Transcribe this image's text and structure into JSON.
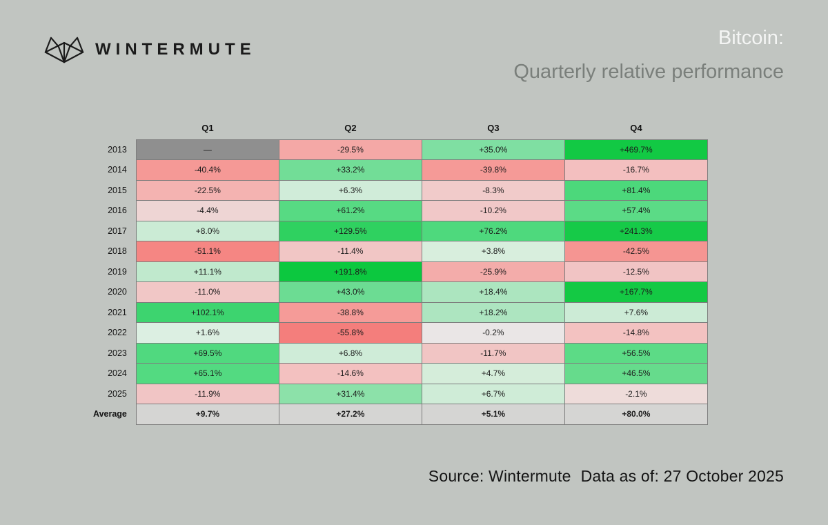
{
  "brand": {
    "name": "WINTERMUTE"
  },
  "title": {
    "line1": "Bitcoin:",
    "line2": "Quarterly relative performance"
  },
  "footer": {
    "source": "Source: Wintermute",
    "data_as_of": "Data as of: 27 October 2025"
  },
  "colors": {
    "background": "#c1c5c1",
    "title_primary": "#f4f5f4",
    "title_secondary": "#7a7f7b",
    "missing_cell": "#8f8f8f",
    "average_cell": "#d5d5d3",
    "grid_border": "#7d7d7d",
    "text": "#1c1c1c",
    "positive_max": "#12c944",
    "negative_max": "#f47e7c"
  },
  "chart_data": {
    "type": "heatmap",
    "title": "Bitcoin: Quarterly relative performance",
    "legend_position": "none",
    "grid": true,
    "columns": [
      "Q1",
      "Q2",
      "Q3",
      "Q4"
    ],
    "rows": [
      {
        "label": "2013",
        "cells": [
          {
            "text": "—",
            "value": null,
            "color": "#8f8f8f"
          },
          {
            "text": "-29.5%",
            "value": -29.5,
            "color": "#f4a8a6"
          },
          {
            "text": "+35.0%",
            "value": 35.0,
            "color": "#7fdfa2"
          },
          {
            "text": "+469.7%",
            "value": 469.7,
            "color": "#12c944"
          }
        ]
      },
      {
        "label": "2014",
        "cells": [
          {
            "text": "-40.4%",
            "value": -40.4,
            "color": "#f59996"
          },
          {
            "text": "+33.2%",
            "value": 33.2,
            "color": "#72dd97"
          },
          {
            "text": "-39.8%",
            "value": -39.8,
            "color": "#f59a97"
          },
          {
            "text": "-16.7%",
            "value": -16.7,
            "color": "#f3bfbf"
          }
        ]
      },
      {
        "label": "2015",
        "cells": [
          {
            "text": "-22.5%",
            "value": -22.5,
            "color": "#f4b3b1"
          },
          {
            "text": "+6.3%",
            "value": 6.3,
            "color": "#d0ecd9"
          },
          {
            "text": "-8.3%",
            "value": -8.3,
            "color": "#f1cbca"
          },
          {
            "text": "+81.4%",
            "value": 81.4,
            "color": "#4cd87b"
          }
        ]
      },
      {
        "label": "2016",
        "cells": [
          {
            "text": "-4.4%",
            "value": -4.4,
            "color": "#eed5d4"
          },
          {
            "text": "+61.2%",
            "value": 61.2,
            "color": "#57da83"
          },
          {
            "text": "-10.2%",
            "value": -10.2,
            "color": "#f1c8c8"
          },
          {
            "text": "+57.4%",
            "value": 57.4,
            "color": "#5bdb86"
          }
        ]
      },
      {
        "label": "2017",
        "cells": [
          {
            "text": "+8.0%",
            "value": 8.0,
            "color": "#cbebd5"
          },
          {
            "text": "+129.5%",
            "value": 129.5,
            "color": "#2fd160"
          },
          {
            "text": "+76.2%",
            "value": 76.2,
            "color": "#4ed97d"
          },
          {
            "text": "+241.3%",
            "value": 241.3,
            "color": "#16ca48"
          }
        ]
      },
      {
        "label": "2018",
        "cells": [
          {
            "text": "-51.1%",
            "value": -51.1,
            "color": "#f58683"
          },
          {
            "text": "-11.4%",
            "value": -11.4,
            "color": "#f1c6c5"
          },
          {
            "text": "+3.8%",
            "value": 3.8,
            "color": "#d8eedd"
          },
          {
            "text": "-42.5%",
            "value": -42.5,
            "color": "#f59592"
          }
        ]
      },
      {
        "label": "2019",
        "cells": [
          {
            "text": "+11.1%",
            "value": 11.1,
            "color": "#c0e9cd"
          },
          {
            "text": "+191.8%",
            "value": 191.8,
            "color": "#0cc83f"
          },
          {
            "text": "-25.9%",
            "value": -25.9,
            "color": "#f3acaa"
          },
          {
            "text": "-12.5%",
            "value": -12.5,
            "color": "#f1c4c4"
          }
        ]
      },
      {
        "label": "2020",
        "cells": [
          {
            "text": "-11.0%",
            "value": -11.0,
            "color": "#f1c7c6"
          },
          {
            "text": "+43.0%",
            "value": 43.0,
            "color": "#6cdc93"
          },
          {
            "text": "+18.4%",
            "value": 18.4,
            "color": "#ace5bf"
          },
          {
            "text": "+167.7%",
            "value": 167.7,
            "color": "#14c944"
          }
        ]
      },
      {
        "label": "2021",
        "cells": [
          {
            "text": "+102.1%",
            "value": 102.1,
            "color": "#3dd46f"
          },
          {
            "text": "-38.8%",
            "value": -38.8,
            "color": "#f59b98"
          },
          {
            "text": "+18.2%",
            "value": 18.2,
            "color": "#ade5c0"
          },
          {
            "text": "+7.6%",
            "value": 7.6,
            "color": "#ccebd6"
          }
        ]
      },
      {
        "label": "2022",
        "cells": [
          {
            "text": "+1.6%",
            "value": 1.6,
            "color": "#dcefe2"
          },
          {
            "text": "-55.8%",
            "value": -55.8,
            "color": "#f47e7c"
          },
          {
            "text": "-0.2%",
            "value": -0.2,
            "color": "#eae6e6"
          },
          {
            "text": "-14.8%",
            "value": -14.8,
            "color": "#f3c2c1"
          }
        ]
      },
      {
        "label": "2023",
        "cells": [
          {
            "text": "+69.5%",
            "value": 69.5,
            "color": "#50d97f"
          },
          {
            "text": "+6.8%",
            "value": 6.8,
            "color": "#cfecd8"
          },
          {
            "text": "-11.7%",
            "value": -11.7,
            "color": "#f1c5c4"
          },
          {
            "text": "+56.5%",
            "value": 56.5,
            "color": "#5cdb86"
          }
        ]
      },
      {
        "label": "2024",
        "cells": [
          {
            "text": "+65.1%",
            "value": 65.1,
            "color": "#53da81"
          },
          {
            "text": "-14.6%",
            "value": -14.6,
            "color": "#f3c1c0"
          },
          {
            "text": "+4.7%",
            "value": 4.7,
            "color": "#d5edda"
          },
          {
            "text": "+46.5%",
            "value": 46.5,
            "color": "#66db8c"
          }
        ]
      },
      {
        "label": "2025",
        "cells": [
          {
            "text": "-11.9%",
            "value": -11.9,
            "color": "#f1c5c5"
          },
          {
            "text": "+31.4%",
            "value": 31.4,
            "color": "#8ce1a9"
          },
          {
            "text": "+6.7%",
            "value": 6.7,
            "color": "#cfecd7"
          },
          {
            "text": "-2.1%",
            "value": -2.1,
            "color": "#eedcda"
          }
        ]
      },
      {
        "label": "Average",
        "bold": true,
        "cells": [
          {
            "text": "+9.7%",
            "value": 9.7,
            "color": "#d5d5d3"
          },
          {
            "text": "+27.2%",
            "value": 27.2,
            "color": "#d5d5d3"
          },
          {
            "text": "+5.1%",
            "value": 5.1,
            "color": "#d5d5d3"
          },
          {
            "text": "+80.0%",
            "value": 80.0,
            "color": "#d5d5d3"
          }
        ]
      }
    ]
  }
}
